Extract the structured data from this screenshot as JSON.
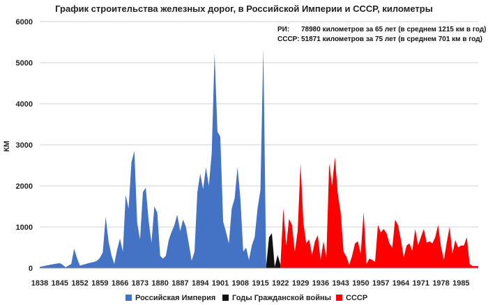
{
  "chart_data": {
    "type": "area",
    "title": "График строительства железных дорог, в Российской Империи и СССР, километры",
    "ylabel": "КМ",
    "xlabel": "",
    "xlim": [
      1838,
      1991
    ],
    "ylim": [
      0,
      6000
    ],
    "yticks": [
      0,
      1000,
      2000,
      3000,
      4000,
      5000,
      6000
    ],
    "xticks": [
      1838,
      1845,
      1852,
      1859,
      1866,
      1873,
      1880,
      1887,
      1894,
      1901,
      1908,
      1915,
      1922,
      1929,
      1936,
      1943,
      1950,
      1957,
      1964,
      1971,
      1978,
      1985
    ],
    "grid": "horizontal",
    "legend_position": "bottom",
    "annotations": [
      {
        "label": "РИ:",
        "text": "78980 километров за 65 лет (в среднем 1215 км в год)"
      },
      {
        "label": "СССР:",
        "text": "51871 километров за 75 лет (в среднем 701 км в год)"
      }
    ],
    "series": [
      {
        "name": "Российская Империя",
        "color": "#4472c4",
        "x": [
          1838,
          1843,
          1845,
          1846,
          1847,
          1849,
          1850,
          1851,
          1852,
          1853,
          1854,
          1855,
          1857,
          1858,
          1859,
          1860,
          1861,
          1862,
          1863,
          1864,
          1865,
          1866,
          1867,
          1868,
          1869,
          1870,
          1871,
          1872,
          1873,
          1874,
          1875,
          1876,
          1877,
          1878,
          1879,
          1880,
          1881,
          1882,
          1883,
          1884,
          1885,
          1886,
          1887,
          1888,
          1889,
          1890,
          1891,
          1892,
          1893,
          1894,
          1895,
          1896,
          1897,
          1898,
          1899,
          1900,
          1901,
          1902,
          1903,
          1904,
          1905,
          1906,
          1907,
          1908,
          1909,
          1910,
          1911,
          1912,
          1913,
          1914,
          1915,
          1916,
          1917
        ],
        "values": [
          30,
          100,
          120,
          80,
          20,
          100,
          470,
          250,
          60,
          80,
          100,
          120,
          150,
          180,
          250,
          380,
          1250,
          650,
          320,
          100,
          450,
          720,
          400,
          1780,
          1450,
          2580,
          2850,
          1100,
          700,
          1850,
          1960,
          1150,
          620,
          1500,
          1350,
          300,
          230,
          300,
          680,
          880,
          1050,
          1300,
          900,
          1180,
          1000,
          600,
          180,
          400,
          1850,
          2300,
          1920,
          2450,
          2000,
          2800,
          5230,
          3320,
          3200,
          1130,
          880,
          600,
          1450,
          1700,
          2460,
          1700,
          400,
          500,
          200,
          550,
          750,
          1450,
          1900,
          5350,
          50
        ]
      },
      {
        "name": "Годы Гражданской войны",
        "color": "#111111",
        "x": [
          1917,
          1918,
          1919,
          1920,
          1921,
          1922
        ],
        "values": [
          50,
          750,
          850,
          30,
          320,
          80
        ]
      },
      {
        "name": "СССР",
        "color": "#ff0000",
        "x": [
          1922,
          1923,
          1924,
          1925,
          1926,
          1927,
          1928,
          1929,
          1930,
          1931,
          1932,
          1933,
          1934,
          1935,
          1936,
          1937,
          1938,
          1939,
          1940,
          1941,
          1942,
          1943,
          1944,
          1945,
          1946,
          1947,
          1948,
          1949,
          1950,
          1951,
          1952,
          1953,
          1954,
          1955,
          1956,
          1957,
          1958,
          1959,
          1960,
          1961,
          1962,
          1963,
          1964,
          1965,
          1966,
          1967,
          1968,
          1969,
          1970,
          1971,
          1972,
          1973,
          1974,
          1975,
          1976,
          1977,
          1978,
          1979,
          1980,
          1981,
          1982,
          1983,
          1984,
          1985,
          1986,
          1987,
          1988,
          1989,
          1990,
          1991
        ],
        "values": [
          80,
          1450,
          550,
          1200,
          1050,
          400,
          900,
          2550,
          1100,
          600,
          700,
          320,
          650,
          800,
          200,
          650,
          250,
          2550,
          2000,
          2700,
          1800,
          1350,
          400,
          280,
          80,
          300,
          600,
          650,
          350,
          1370,
          100,
          230,
          200,
          150,
          1050,
          870,
          950,
          850,
          600,
          500,
          1180,
          1050,
          700,
          260,
          550,
          600,
          420,
          950,
          550,
          760,
          950,
          620,
          650,
          600,
          750,
          1050,
          520,
          200,
          620,
          1000,
          350,
          680,
          500,
          550,
          550,
          750,
          100,
          50,
          50,
          50
        ]
      }
    ]
  }
}
